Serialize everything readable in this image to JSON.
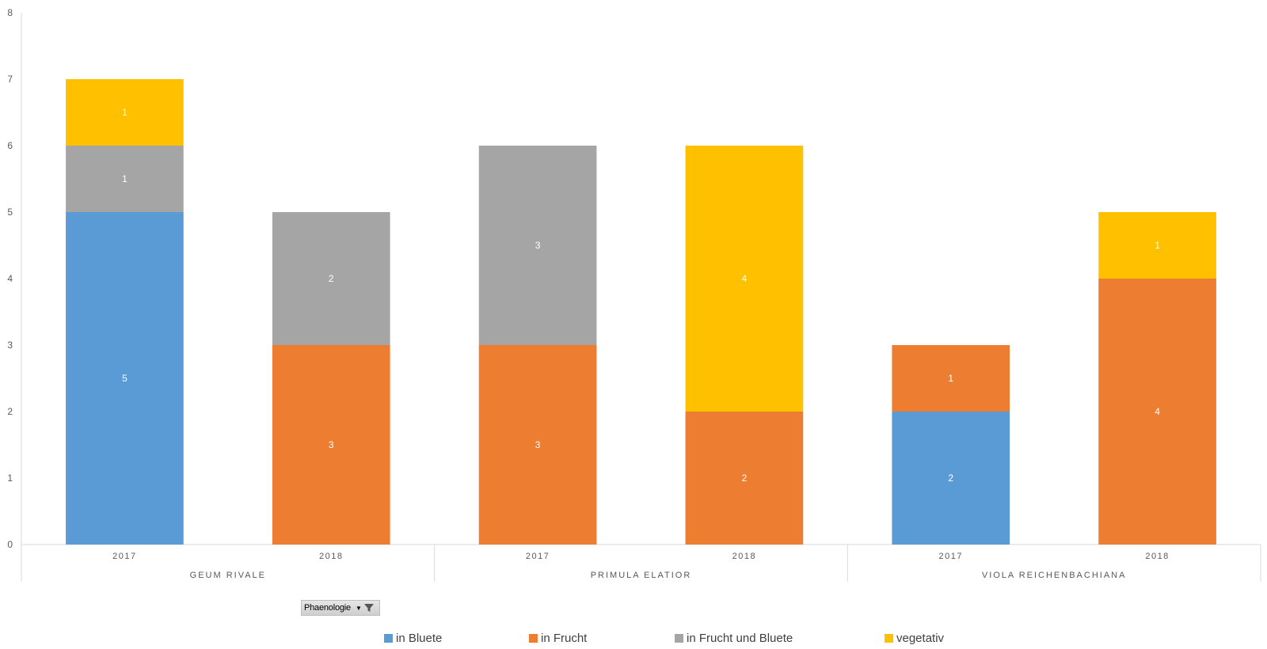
{
  "chart_data": {
    "type": "bar",
    "stacked": true,
    "ylim": [
      0,
      8
    ],
    "yticks": [
      "0",
      "1",
      "2",
      "3",
      "4",
      "5",
      "6",
      "7",
      "8"
    ],
    "groups": [
      {
        "label": "GEUM RIVALE",
        "categories": [
          "2017",
          "2018"
        ]
      },
      {
        "label": "PRIMULA ELATIOR",
        "categories": [
          "2017",
          "2018"
        ]
      },
      {
        "label": "VIOLA REICHENBACHIANA",
        "categories": [
          "2017",
          "2018"
        ]
      }
    ],
    "categories": [
      "2017",
      "2018",
      "2017",
      "2018",
      "2017",
      "2018"
    ],
    "series": [
      {
        "name": "in Bluete",
        "color": "#5b9bd5",
        "values": [
          5,
          0,
          0,
          0,
          2,
          0
        ]
      },
      {
        "name": "in Frucht",
        "color": "#ed7d31",
        "values": [
          0,
          3,
          3,
          2,
          1,
          4
        ]
      },
      {
        "name": "in Frucht und Bluete",
        "color": "#a5a5a5",
        "values": [
          1,
          2,
          3,
          0,
          0,
          0
        ]
      },
      {
        "name": "vegetativ",
        "color": "#ffc000",
        "values": [
          1,
          0,
          0,
          4,
          0,
          1
        ]
      }
    ],
    "legend_position": "bottom",
    "grid": false
  },
  "filter": {
    "label": "Phaenologie"
  }
}
